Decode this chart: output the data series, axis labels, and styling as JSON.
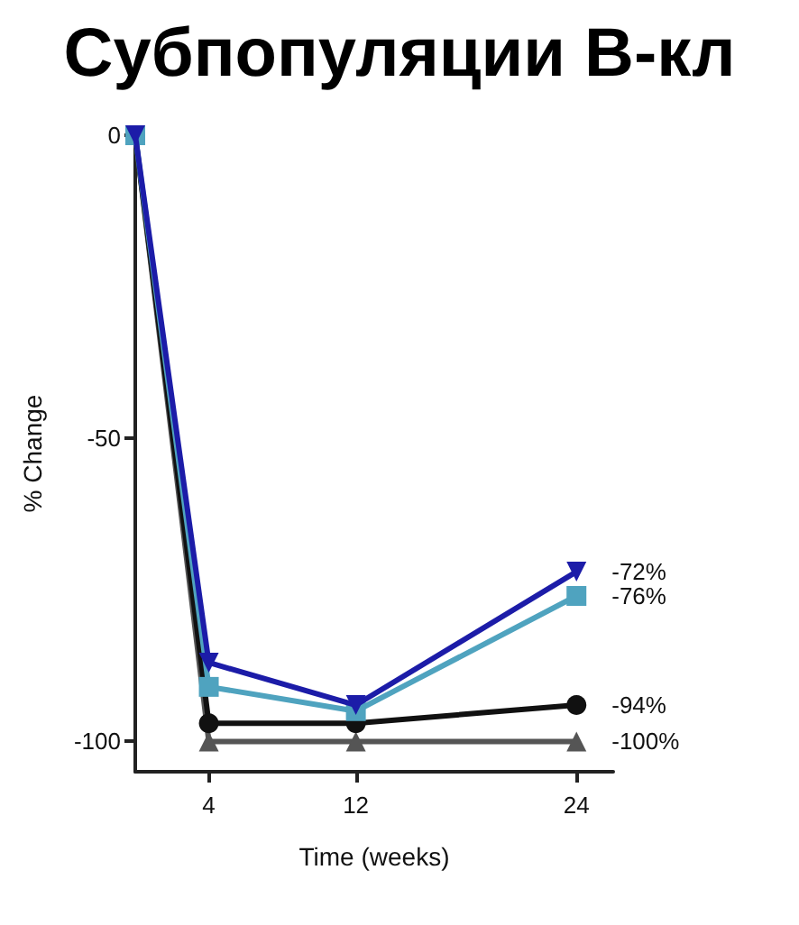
{
  "chart_data": {
    "type": "line",
    "title": "Субпопуляции В-кл",
    "xlabel": "Time (weeks)",
    "ylabel": "% Change",
    "x": [
      0,
      4,
      12,
      24
    ],
    "series": [
      {
        "color": "#1c1ca8",
        "marker": "triangle-down",
        "values": [
          0,
          -87,
          -94,
          -72
        ],
        "value_labels": [
          null,
          null,
          null,
          "-72%"
        ]
      },
      {
        "color": "#4fa3bf",
        "marker": "square",
        "values": [
          0,
          -91,
          -95,
          -76
        ],
        "value_labels": [
          null,
          null,
          null,
          "-76%"
        ]
      },
      {
        "color": "#111111",
        "marker": "circle",
        "values": [
          0,
          -97,
          -97,
          -94
        ],
        "value_labels": [
          null,
          null,
          null,
          "-94%"
        ]
      },
      {
        "color": "#555555",
        "marker": "triangle",
        "values": [
          0,
          -100,
          -100,
          -100
        ],
        "value_labels": [
          null,
          null,
          null,
          "-100%"
        ]
      }
    ],
    "xlim": [
      0,
      26
    ],
    "ylim": [
      -105,
      0
    ],
    "xticks": [
      4,
      12,
      24
    ],
    "yticks": [
      0,
      -50,
      -100
    ]
  }
}
